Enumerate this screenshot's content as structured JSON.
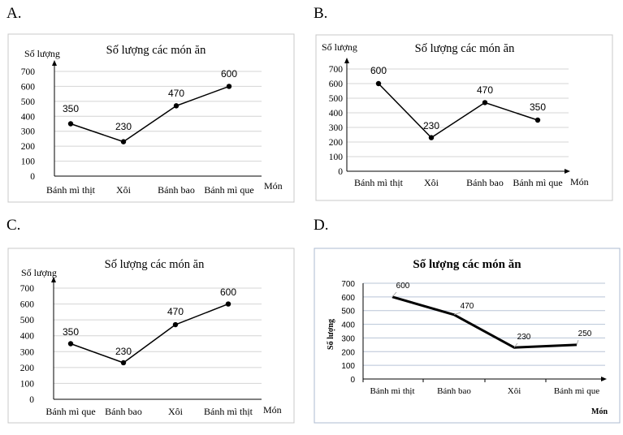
{
  "options": [
    "A.",
    "B.",
    "C.",
    "D."
  ],
  "chart_data": [
    {
      "type": "line",
      "option": "A.",
      "title": "Số lượng các món ăn",
      "ylabel": "Số lượng",
      "xlabel": "Món",
      "categories": [
        "Bánh mì thịt",
        "Xôi",
        "Bánh bao",
        "Bánh mì que"
      ],
      "values": [
        350,
        230,
        470,
        600
      ],
      "yticks": [
        "0",
        "100",
        "200",
        "300",
        "400",
        "500",
        "600",
        "700"
      ],
      "ylim": [
        0,
        700
      ],
      "grid": true,
      "markers": true
    },
    {
      "type": "line",
      "option": "B.",
      "title": "Số lượng các món ăn",
      "ylabel": "Số lượng",
      "xlabel": "Món",
      "categories": [
        "Bánh mì thịt",
        "Xôi",
        "Bánh bao",
        "Bánh mì que"
      ],
      "values": [
        600,
        230,
        470,
        350
      ],
      "yticks": [
        "0",
        "100",
        "200",
        "300",
        "400",
        "500",
        "600",
        "700"
      ],
      "ylim": [
        0,
        700
      ],
      "grid": true,
      "markers": true
    },
    {
      "type": "line",
      "option": "C.",
      "title": "Số lượng các món ăn",
      "ylabel": "Số lượng",
      "xlabel": "Món",
      "categories": [
        "Bánh mì que",
        "Bánh bao",
        "Xôi",
        "Bánh mì thịt"
      ],
      "values": [
        350,
        230,
        470,
        600
      ],
      "yticks": [
        "0",
        "100",
        "200",
        "300",
        "400",
        "500",
        "600",
        "700"
      ],
      "ylim": [
        0,
        700
      ],
      "grid": true,
      "markers": true
    },
    {
      "type": "line",
      "option": "D.",
      "title": "Số lượng các món ăn",
      "ylabel": "Số lượng",
      "xlabel": "Món",
      "categories": [
        "Bánh mì thịt",
        "Bánh bao",
        "Xôi",
        "Bánh mì que"
      ],
      "values": [
        600,
        470,
        230,
        250
      ],
      "yticks": [
        "0",
        "100",
        "200",
        "300",
        "400",
        "500",
        "600",
        "700"
      ],
      "ylim": [
        0,
        700
      ],
      "grid": true,
      "markers": false
    }
  ]
}
